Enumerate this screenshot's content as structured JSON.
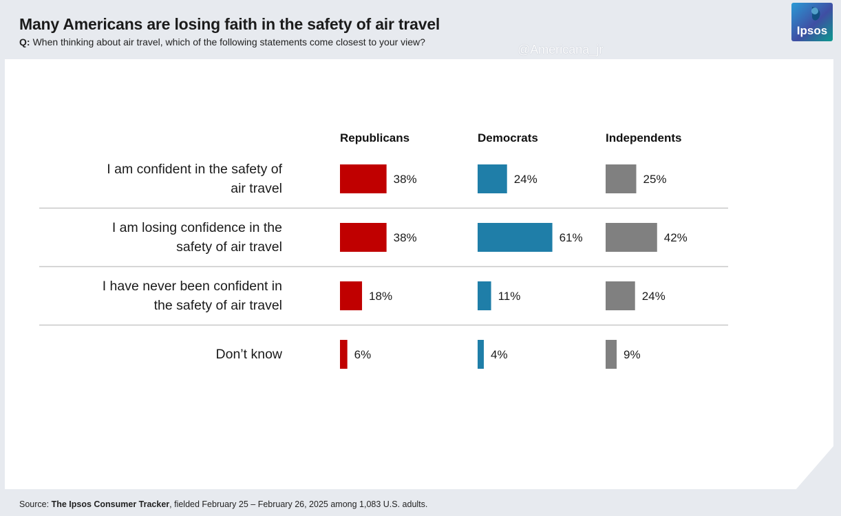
{
  "header": {
    "title": "Many Americans are losing faith in the safety of air travel",
    "question_prefix": "Q:",
    "question": "When thinking about air travel, which of the following statements come closest to your view?"
  },
  "watermark": "@Americana_jr",
  "logo": {
    "text": "Ipsos",
    "colors": [
      "#2a9ad6",
      "#0b9a8e",
      "#3f4ea3"
    ]
  },
  "source": {
    "prefix": "Source: ",
    "name": "The Ipsos Consumer Tracker",
    "rest": ", fielded February 25 – February 26, 2025 among 1,083 U.S. adults."
  },
  "chart_data": {
    "type": "bar",
    "orientation": "horizontal",
    "categories": [
      [
        "I am confident in the safety of",
        "air travel"
      ],
      [
        "I am losing confidence in the",
        "safety of air travel"
      ],
      [
        "I have never been confident in",
        "the safety of air travel"
      ],
      [
        "Don’t know"
      ]
    ],
    "series": [
      {
        "name": "Republicans",
        "color": "#c00000",
        "values": [
          38,
          38,
          18,
          6
        ]
      },
      {
        "name": "Democrats",
        "color": "#1f7ea8",
        "values": [
          24,
          61,
          11,
          4
        ]
      },
      {
        "name": "Independents",
        "color": "#808080",
        "values": [
          25,
          42,
          24,
          9
        ]
      }
    ],
    "value_suffix": "%",
    "legend": "column headers"
  }
}
